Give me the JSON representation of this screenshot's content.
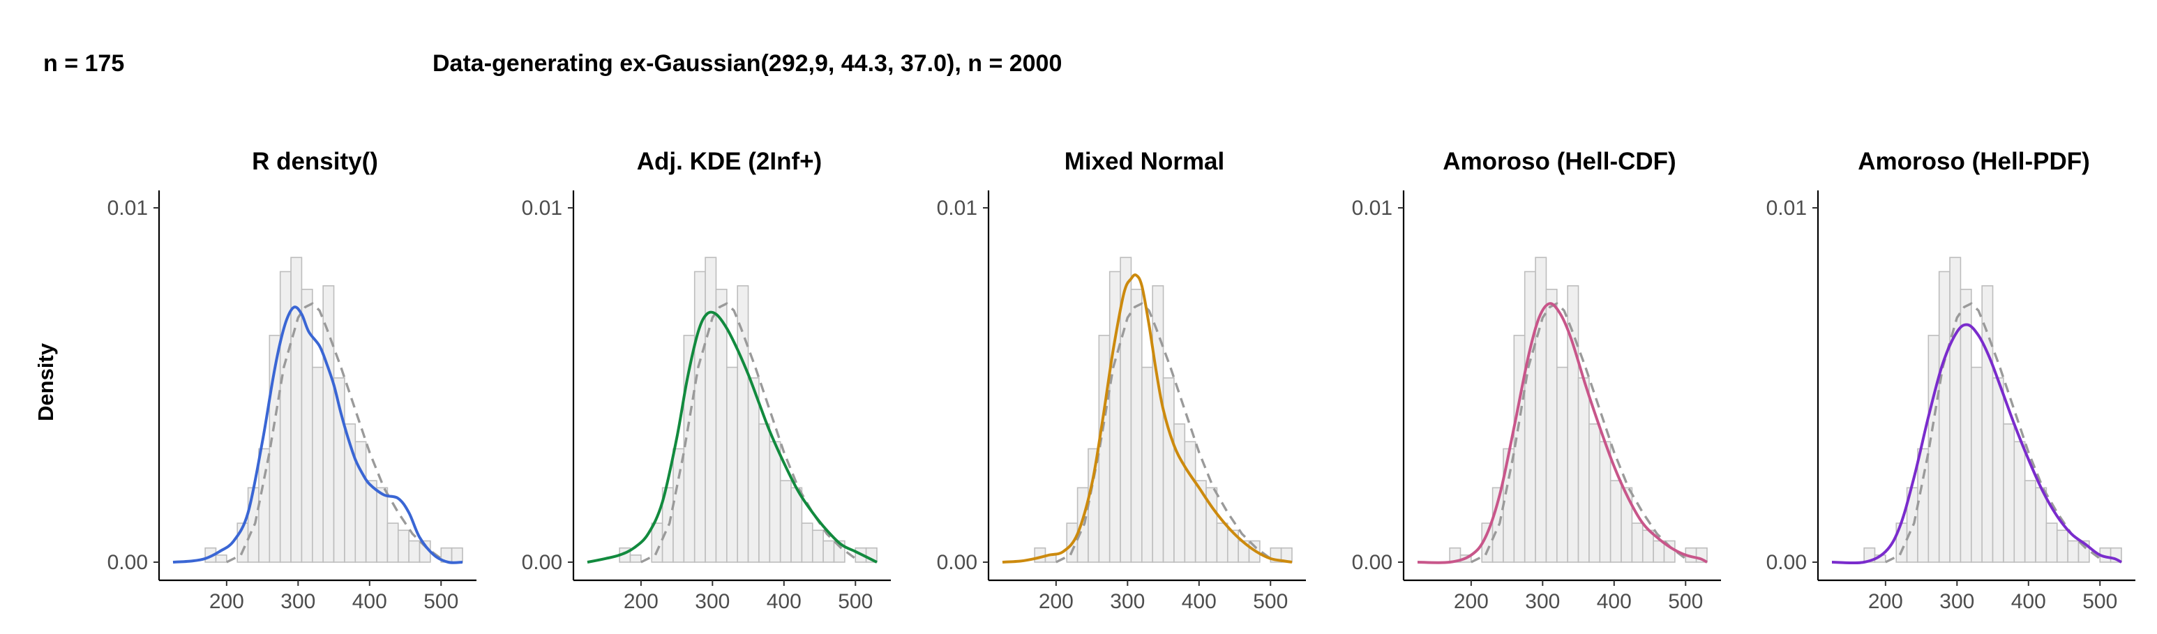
{
  "header": {
    "sample_label": "n = 175",
    "title": "Data-generating ex-Gaussian(292,9, 44.3, 37.0), n = 2000"
  },
  "ylabel": "Density",
  "chart_data": {
    "type": "histogram-density-facets",
    "ylabel": "Density",
    "xlim": [
      125,
      530
    ],
    "ylim": [
      0,
      0.0105
    ],
    "x_ticks": [
      200,
      300,
      400,
      500
    ],
    "y_ticks": [
      0.0,
      0.01
    ],
    "y_tick_labels": [
      "0.00",
      "0.01"
    ],
    "histogram": {
      "bin_width": 15,
      "bin_starts": [
        170,
        185,
        200,
        215,
        230,
        245,
        260,
        275,
        290,
        305,
        320,
        335,
        350,
        365,
        380,
        395,
        410,
        425,
        440,
        455,
        470,
        485,
        500,
        515
      ],
      "density": [
        0.0004,
        0.0002,
        0.0,
        0.0011,
        0.0021,
        0.0032,
        0.0064,
        0.0082,
        0.0086,
        0.0077,
        0.0055,
        0.0078,
        0.0052,
        0.0039,
        0.0034,
        0.0023,
        0.0021,
        0.0011,
        0.0009,
        0.0006,
        0.0006,
        0.0,
        0.0004,
        0.0004
      ]
    },
    "reference_curve": {
      "name": "ex-Gaussian(292.9, 44.3, 37.0)",
      "x": [
        200,
        220,
        240,
        260,
        280,
        300,
        310,
        320,
        330,
        340,
        360,
        380,
        400,
        420,
        440,
        460,
        480,
        500
      ],
      "y": [
        0.0,
        0.0002,
        0.0011,
        0.0031,
        0.0055,
        0.0069,
        0.0072,
        0.0073,
        0.0071,
        0.0066,
        0.0055,
        0.0043,
        0.0031,
        0.0021,
        0.0014,
        0.0008,
        0.0004,
        0.0001
      ]
    },
    "panels": [
      {
        "title": "R density()",
        "color": "#3a66d4",
        "x": [
          125,
          150,
          170,
          190,
          210,
          230,
          250,
          265,
          275,
          285,
          295,
          305,
          315,
          330,
          340,
          350,
          360,
          370,
          380,
          390,
          400,
          420,
          440,
          455,
          470,
          490,
          510,
          530
        ],
        "y": [
          0.0,
          3e-05,
          0.0001,
          0.0003,
          0.0006,
          0.0014,
          0.0034,
          0.0052,
          0.0062,
          0.0069,
          0.0072,
          0.007,
          0.0065,
          0.0061,
          0.0056,
          0.005,
          0.0042,
          0.0035,
          0.0029,
          0.0025,
          0.0022,
          0.0019,
          0.0018,
          0.0014,
          0.0007,
          0.0002,
          0.0,
          0.0
        ]
      },
      {
        "title": "Adj. KDE (2Inf+)",
        "color": "#128a3e",
        "x": [
          125,
          150,
          170,
          190,
          210,
          230,
          250,
          265,
          280,
          292,
          305,
          320,
          335,
          350,
          365,
          380,
          400,
          420,
          440,
          460,
          480,
          500,
          520,
          530
        ],
        "y": [
          0.0,
          0.0001,
          0.0002,
          0.0004,
          0.0008,
          0.0017,
          0.0035,
          0.0052,
          0.0065,
          0.007,
          0.007,
          0.0066,
          0.006,
          0.0053,
          0.0045,
          0.0037,
          0.0028,
          0.002,
          0.0014,
          0.0009,
          0.0005,
          0.0003,
          0.0001,
          0.0
        ]
      },
      {
        "title": "Mixed Normal",
        "color": "#cc8a0e",
        "x": [
          125,
          150,
          170,
          190,
          210,
          230,
          250,
          265,
          280,
          295,
          305,
          312,
          320,
          330,
          340,
          350,
          365,
          380,
          400,
          420,
          440,
          460,
          480,
          500,
          520,
          530
        ],
        "y": [
          0.0,
          3e-05,
          0.0001,
          0.0002,
          0.0003,
          0.0008,
          0.0022,
          0.004,
          0.006,
          0.0076,
          0.008,
          0.0081,
          0.0078,
          0.0067,
          0.0054,
          0.0043,
          0.0033,
          0.0027,
          0.0021,
          0.0015,
          0.001,
          0.0006,
          0.0003,
          0.0001,
          3e-05,
          0.0
        ]
      },
      {
        "title": "Amoroso (Hell-CDF)",
        "color": "#c8568a",
        "x": [
          125,
          170,
          200,
          220,
          240,
          260,
          280,
          295,
          310,
          325,
          340,
          360,
          380,
          400,
          420,
          440,
          460,
          480,
          500,
          520,
          530
        ],
        "y": [
          0.0,
          0.0,
          0.0002,
          0.0007,
          0.0019,
          0.0038,
          0.0058,
          0.0069,
          0.0073,
          0.007,
          0.0063,
          0.005,
          0.0038,
          0.0027,
          0.0018,
          0.0011,
          0.0007,
          0.0004,
          0.0002,
          0.0001,
          0.0
        ]
      },
      {
        "title": "Amoroso (Hell-PDF)",
        "color": "#7a2ccc",
        "x": [
          125,
          170,
          200,
          220,
          240,
          260,
          280,
          300,
          315,
          330,
          345,
          360,
          380,
          400,
          420,
          440,
          460,
          480,
          500,
          520,
          530
        ],
        "y": [
          0.0,
          0.0,
          0.0003,
          0.001,
          0.0024,
          0.0041,
          0.0056,
          0.0065,
          0.0067,
          0.0064,
          0.0058,
          0.005,
          0.0039,
          0.0029,
          0.002,
          0.0013,
          0.0008,
          0.0005,
          0.0002,
          0.0001,
          0.0
        ]
      }
    ]
  }
}
